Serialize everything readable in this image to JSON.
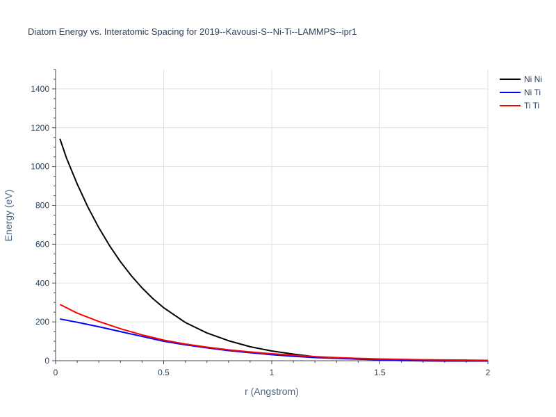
{
  "chart_data": {
    "type": "line",
    "title": "Diatom Energy vs. Interatomic Spacing for 2019--Kavousi-S--Ni-Ti--LAMMPS--ipr1",
    "xlabel": "r (Angstrom)",
    "ylabel": "Energy (eV)",
    "xlim": [
      0,
      2
    ],
    "ylim": [
      0,
      1500
    ],
    "x_ticks": [
      0,
      0.5,
      1,
      1.5,
      2
    ],
    "x_tick_labels": [
      "0",
      "0.5",
      "1",
      "1.5",
      "2"
    ],
    "y_ticks": [
      0,
      200,
      400,
      600,
      800,
      1000,
      1200,
      1400
    ],
    "y_tick_labels": [
      "0",
      "200",
      "400",
      "600",
      "800",
      "1000",
      "1200",
      "1400"
    ],
    "grid": true,
    "legend_position": "top-right",
    "series": [
      {
        "name": "Ni Ni",
        "color": "#000000",
        "x": [
          0.02,
          0.05,
          0.1,
          0.15,
          0.2,
          0.25,
          0.3,
          0.35,
          0.4,
          0.45,
          0.5,
          0.6,
          0.7,
          0.8,
          0.9,
          1.0,
          1.1,
          1.2,
          1.3,
          1.4,
          1.5,
          1.6,
          1.7,
          1.8,
          1.9,
          2.0
        ],
        "values": [
          1143,
          1045,
          910,
          790,
          685,
          592,
          510,
          438,
          375,
          320,
          273,
          197,
          143,
          103,
          72,
          50,
          34,
          20,
          13,
          9,
          6,
          4,
          3,
          2,
          1,
          0
        ]
      },
      {
        "name": "Ni Ti",
        "color": "#0000ff",
        "x": [
          0.02,
          0.1,
          0.2,
          0.3,
          0.4,
          0.5,
          0.6,
          0.7,
          0.8,
          0.9,
          1.0,
          1.1,
          1.2,
          1.3,
          1.4,
          1.5,
          1.6,
          1.7,
          1.8,
          1.9,
          2.0
        ],
        "values": [
          215,
          198,
          175,
          150,
          125,
          100,
          82,
          66,
          52,
          41,
          31,
          23,
          16,
          12,
          8,
          4,
          1,
          -1,
          -2,
          -2,
          -2
        ]
      },
      {
        "name": "Ti Ti",
        "color": "#ff0000",
        "x": [
          0.02,
          0.1,
          0.2,
          0.3,
          0.4,
          0.5,
          0.6,
          0.7,
          0.8,
          0.9,
          1.0,
          1.1,
          1.2,
          1.3,
          1.4,
          1.5,
          1.6,
          1.7,
          1.8,
          1.9,
          2.0
        ],
        "values": [
          290,
          245,
          202,
          165,
          133,
          106,
          86,
          70,
          56,
          45,
          36,
          28,
          21,
          16,
          12,
          9,
          7,
          5,
          4,
          3,
          2
        ]
      }
    ]
  }
}
